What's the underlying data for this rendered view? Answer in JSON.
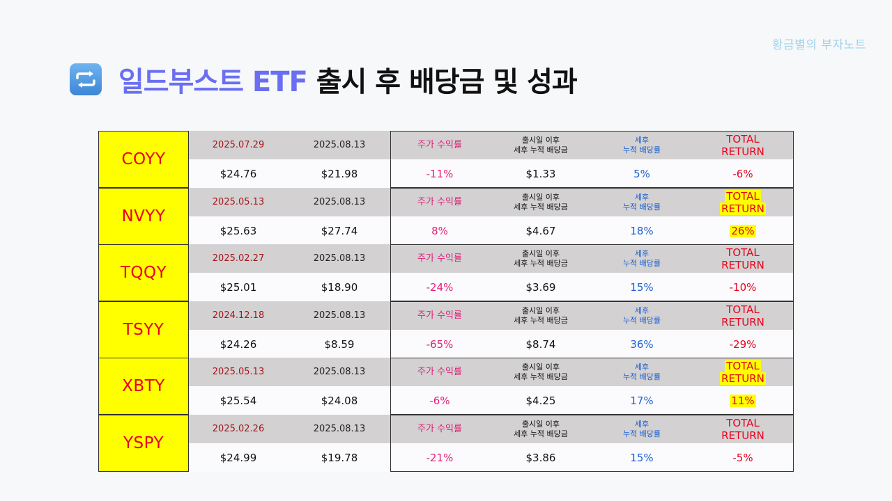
{
  "watermark": "황금별의 부자노트",
  "title": {
    "icon": "repeat-icon",
    "accent": "일드부스트 ETF",
    "rest": " 출시 후 배당금 및 성과"
  },
  "labels": {
    "price_return": "주가 수익률",
    "div_line1": "출시일 이후",
    "div_line2": "세후 누적 배당금",
    "yield_line1": "세후",
    "yield_line2": "누적 배당률",
    "total_line1": "TOTAL",
    "total_line2": "RETURN"
  },
  "colors": {
    "ticker_bg": "#ffff00",
    "ticker_text": "#e8001c",
    "highlight": "#ffff00",
    "return_pink": "#e0217a",
    "yield_blue": "#1b5fd0",
    "title_accent": "#6a6ff2"
  },
  "etfs": [
    {
      "ticker": "COYY",
      "launch_date": "2025.07.29",
      "current_date": "2025.08.13",
      "launch_price": "$24.76",
      "current_price": "$21.98",
      "price_return": "-11%",
      "cum_dividend": "$1.33",
      "cum_yield": "5%",
      "total_return": "-6%",
      "highlight": false
    },
    {
      "ticker": "NVYY",
      "launch_date": "2025.05.13",
      "current_date": "2025.08.13",
      "launch_price": "$25.63",
      "current_price": "$27.74",
      "price_return": "8%",
      "cum_dividend": "$4.67",
      "cum_yield": "18%",
      "total_return": "26%",
      "highlight": true
    },
    {
      "ticker": "TQQY",
      "launch_date": "2025.02.27",
      "current_date": "2025.08.13",
      "launch_price": "$25.01",
      "current_price": "$18.90",
      "price_return": "-24%",
      "cum_dividend": "$3.69",
      "cum_yield": "15%",
      "total_return": "-10%",
      "highlight": false
    },
    {
      "ticker": "TSYY",
      "launch_date": "2024.12.18",
      "current_date": "2025.08.13",
      "launch_price": "$24.26",
      "current_price": "$8.59",
      "price_return": "-65%",
      "cum_dividend": "$8.74",
      "cum_yield": "36%",
      "total_return": "-29%",
      "highlight": false
    },
    {
      "ticker": "XBTY",
      "launch_date": "2025.05.13",
      "current_date": "2025.08.13",
      "launch_price": "$25.54",
      "current_price": "$24.08",
      "price_return": "-6%",
      "cum_dividend": "$4.25",
      "cum_yield": "17%",
      "total_return": "11%",
      "highlight": true
    },
    {
      "ticker": "YSPY",
      "launch_date": "2025.02.26",
      "current_date": "2025.08.13",
      "launch_price": "$24.99",
      "current_price": "$19.78",
      "price_return": "-21%",
      "cum_dividend": "$3.86",
      "cum_yield": "15%",
      "total_return": "-5%",
      "highlight": false
    }
  ]
}
